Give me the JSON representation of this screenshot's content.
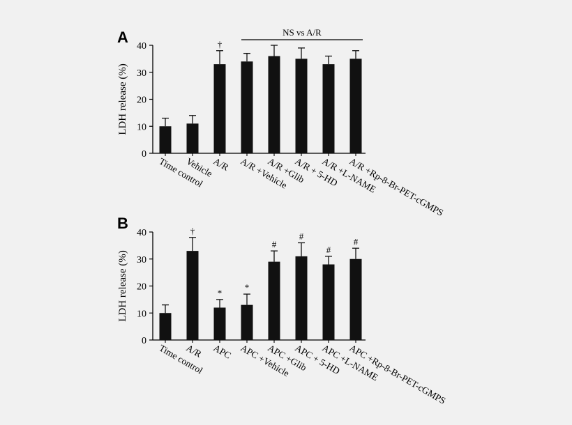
{
  "chart_data": [
    {
      "type": "bar",
      "panel_label": "A",
      "ylabel": "LDH release (%)",
      "ylim": [
        0,
        40
      ],
      "yticks": [
        0,
        10,
        20,
        30,
        40
      ],
      "categories": [
        "Time control",
        "Vehicle",
        "A/R",
        "A/R +Vehicle",
        "A/R +Glib",
        "A/R + 5-HD",
        "A/R +L-NAME",
        "A/R +Rp-8-Br-PET-cGMPS"
      ],
      "values": [
        10,
        11,
        33,
        34,
        36,
        35,
        33,
        35
      ],
      "errors": [
        3,
        3,
        5,
        3,
        4,
        4,
        3,
        3
      ],
      "markers": [
        "",
        "",
        "†",
        "",
        "",
        "",
        "",
        ""
      ],
      "bracket": {
        "text": "NS vs A/R",
        "from_index": 3,
        "to_index": 7
      }
    },
    {
      "type": "bar",
      "panel_label": "B",
      "ylabel": "LDH release (%)",
      "ylim": [
        0,
        40
      ],
      "yticks": [
        0,
        10,
        20,
        30,
        40
      ],
      "categories": [
        "Time control",
        "A/R",
        "APC",
        "APC +Vehicle",
        "APC +Glib",
        "APC + 5-HD",
        "APC +L-NAME",
        "APC +Rp-8-Br-PET-cGMPS"
      ],
      "values": [
        10,
        33,
        12,
        13,
        29,
        31,
        28,
        30
      ],
      "errors": [
        3,
        5,
        3,
        4,
        4,
        5,
        3,
        4
      ],
      "markers": [
        "",
        "†",
        "*",
        "*",
        "#",
        "#",
        "#",
        "#"
      ]
    }
  ]
}
